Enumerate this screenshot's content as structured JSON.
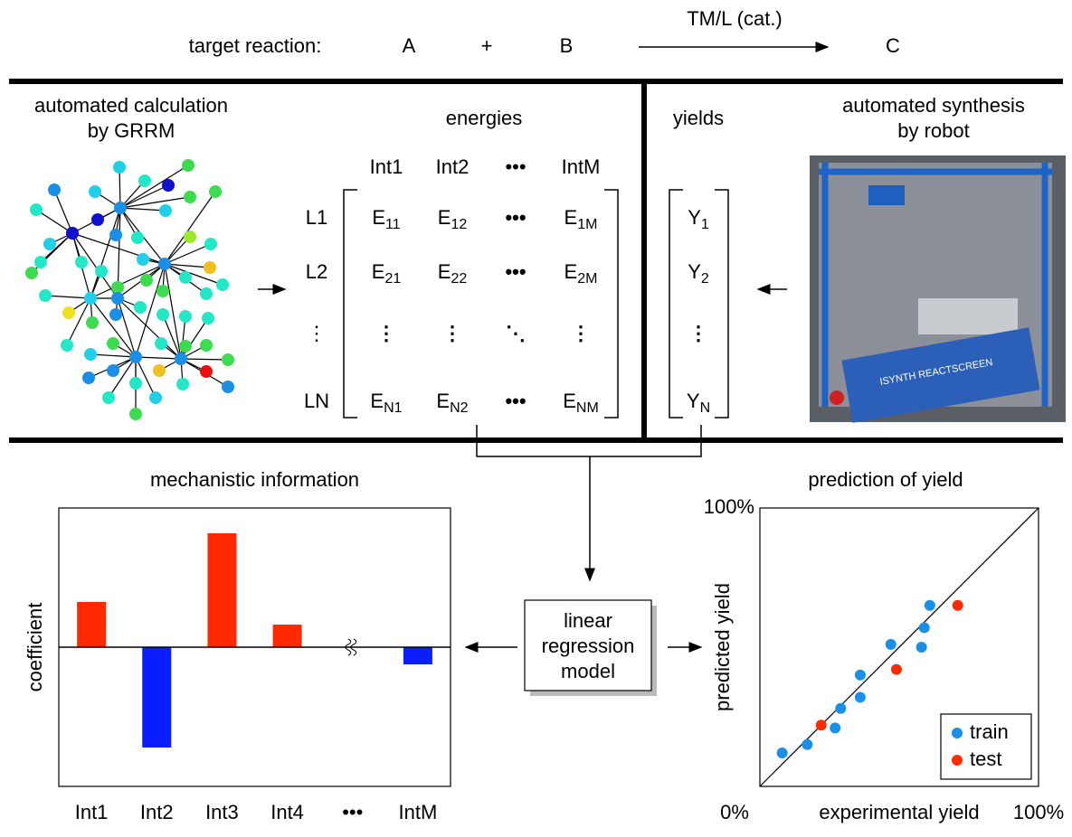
{
  "reaction": {
    "label": "target reaction:",
    "reactant_a": "A",
    "plus": "+",
    "reactant_b": "B",
    "catalyst": "TM/L (cat.)",
    "product": "C"
  },
  "calculation": {
    "title": [
      "automated calculation",
      "by GRRM"
    ]
  },
  "energies": {
    "title": "energies",
    "columns": [
      "Int1",
      "Int2",
      "•••",
      "IntM"
    ],
    "rows": [
      {
        "label": "L1",
        "cells": [
          {
            "main": "E",
            "sub": "11"
          },
          {
            "main": "E",
            "sub": "12"
          },
          "•••",
          {
            "main": "E",
            "sub": "1M"
          }
        ]
      },
      {
        "label": "L2",
        "cells": [
          {
            "main": "E",
            "sub": "21"
          },
          {
            "main": "E",
            "sub": "22"
          },
          "•••",
          {
            "main": "E",
            "sub": "2M"
          }
        ]
      },
      {
        "label": "⋮",
        "cells": [
          "⋮",
          "⋮",
          "⋱",
          "⋮"
        ]
      },
      {
        "label": "LN",
        "cells": [
          {
            "main": "E",
            "sub": "N1"
          },
          {
            "main": "E",
            "sub": "N2"
          },
          "•••",
          {
            "main": "E",
            "sub": "NM"
          }
        ]
      }
    ]
  },
  "yields": {
    "title": "yields",
    "cells": [
      {
        "main": "Y",
        "sub": "1"
      },
      {
        "main": "Y",
        "sub": "2"
      },
      "⋮",
      {
        "main": "Y",
        "sub": "N"
      }
    ]
  },
  "synthesis": {
    "title": [
      "automated synthesis",
      "by robot"
    ],
    "photo_text": "ISYNTH REACTSCREEN"
  },
  "model": {
    "label": [
      "linear",
      "regression",
      "model"
    ]
  },
  "chart_data": [
    {
      "type": "bar",
      "title": "mechanistic information",
      "ylabel": "coefficient",
      "categories": [
        "Int1",
        "Int2",
        "Int3",
        "Int4",
        "•••",
        "IntM"
      ],
      "values": [
        50,
        -111,
        126,
        25,
        null,
        -19
      ],
      "ylim": [
        -154,
        154
      ],
      "positive_color": "#ff2a00",
      "negative_color": "#0a1eff"
    },
    {
      "type": "scatter",
      "title": "prediction of yield",
      "xlabel": "experimental yield",
      "ylabel": "predicted yield",
      "xlim": [
        0,
        100
      ],
      "ylim": [
        0,
        100
      ],
      "xticks": [
        {
          "value": 0,
          "label": "0%"
        },
        {
          "value": 100,
          "label": "100%"
        }
      ],
      "yticks": [
        {
          "value": 100,
          "label": "100%"
        }
      ],
      "diagonal": true,
      "legend": "lower right",
      "series": [
        {
          "name": "train",
          "color": "#1a8fe8",
          "x": [
            8,
            17,
            27,
            29,
            36,
            36,
            47,
            58,
            59,
            61
          ],
          "y": [
            12,
            15,
            21,
            28,
            32,
            40,
            51,
            50,
            57,
            65
          ]
        },
        {
          "name": "test",
          "color": "#ff2a00",
          "x": [
            22,
            49,
            71
          ],
          "y": [
            22,
            42,
            65
          ]
        }
      ]
    }
  ]
}
